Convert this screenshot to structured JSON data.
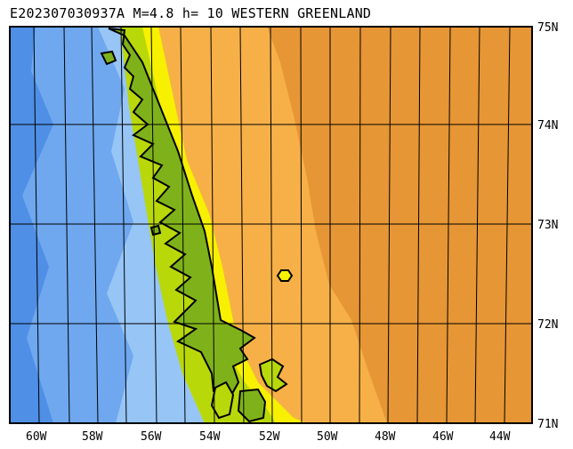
{
  "header": {
    "title": "E202307030937A M=4.8 h= 10 WESTERN GREENLAND"
  },
  "map": {
    "region": "WESTERN GREENLAND",
    "epicenter_marker": "hexagon",
    "longitude_labels": [
      "60W",
      "58W",
      "56W",
      "54W",
      "52W",
      "50W",
      "48W",
      "46W",
      "44W"
    ],
    "latitude_labels": [
      "75N",
      "74N",
      "73N",
      "72N",
      "71N"
    ],
    "colors": {
      "deep_ocean": "#4f8fe6",
      "ocean": "#6fa8ef",
      "shelf": "#97c5f5",
      "lowland": "#7fb21a",
      "hills": "#b9d80a",
      "highland": "#f7f000",
      "ice": "#f7b048",
      "high_ice": "#e69634",
      "coastline": "#000000",
      "grid": "#000000"
    }
  }
}
